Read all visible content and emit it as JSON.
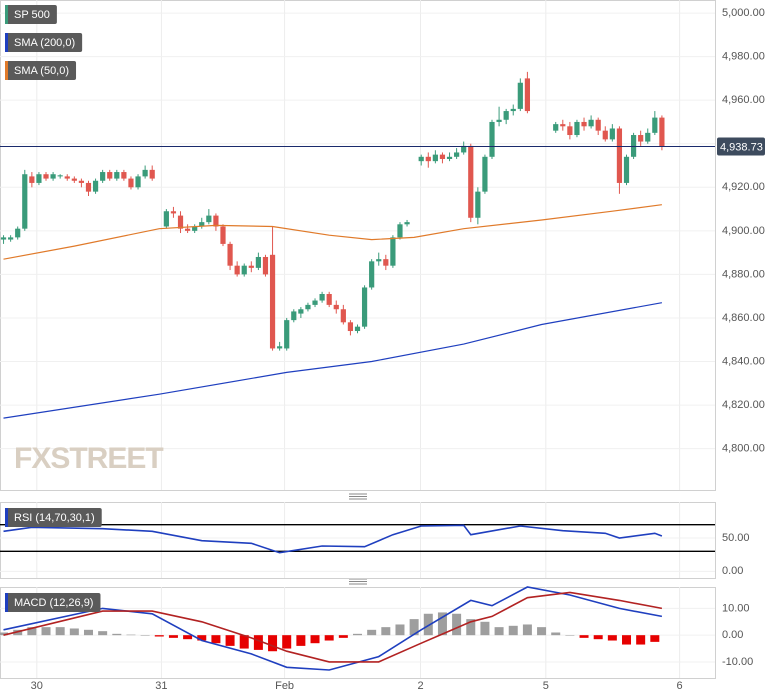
{
  "chart_data": [
    {
      "type": "candlestick",
      "xlim": [
        -0.5,
        100.5
      ],
      "ylim": [
        4781,
        5006
      ],
      "yticks": [
        {
          "value": 5000,
          "label": "5,000.00"
        },
        {
          "value": 4980,
          "label": "4,980.00"
        },
        {
          "value": 4960,
          "label": "4,960.00"
        },
        {
          "value": 4940,
          "label": "4,940.00"
        },
        {
          "value": 4920,
          "label": "4,920.00"
        },
        {
          "value": 4900,
          "label": "4,900.00"
        },
        {
          "value": 4880,
          "label": "4,880.00"
        },
        {
          "value": 4860,
          "label": "4,860.00"
        },
        {
          "value": 4840,
          "label": "4,840.00"
        },
        {
          "value": 4820,
          "label": "4,820.00"
        },
        {
          "value": 4800,
          "label": "4,800.00"
        }
      ],
      "up_color": "#3a9b7a",
      "down_color": "#e0574f",
      "last_price": {
        "value": 4938.73,
        "label": "4,938.73"
      },
      "watermark": "FXSTREET",
      "series": [
        {
          "name": "SP 500",
          "type": "candlestick",
          "color": "#3a9b7a",
          "x": [
            0,
            1,
            2,
            3,
            4,
            5,
            6,
            7,
            8,
            9,
            10,
            11,
            12,
            13,
            14,
            15,
            16,
            17,
            18,
            19,
            20,
            21,
            23,
            24,
            25,
            26,
            27,
            28,
            29,
            30,
            31,
            32,
            33,
            34,
            35,
            36,
            37,
            38,
            39,
            40,
            41,
            42,
            43,
            44,
            45,
            46,
            47,
            48,
            49,
            50,
            51,
            52,
            53,
            54,
            55,
            56,
            57,
            59,
            60,
            61,
            62,
            63,
            64,
            65,
            66,
            67,
            68,
            69,
            70,
            71,
            72,
            73,
            74,
            78,
            79,
            80,
            81,
            82,
            83,
            84,
            85,
            86,
            87,
            88,
            89,
            90,
            91,
            92,
            93
          ],
          "ohlc": [
            [
              4896,
              4898,
              4894,
              4897
            ],
            [
              4896,
              4898,
              4895,
              4897
            ],
            [
              4897,
              4902,
              4896,
              4901
            ],
            [
              4901,
              4928,
              4900,
              4926
            ],
            [
              4925,
              4927,
              4920,
              4922
            ],
            [
              4922,
              4927,
              4921,
              4926
            ],
            [
              4926,
              4927,
              4923,
              4924
            ],
            [
              4924,
              4927,
              4923,
              4926
            ],
            [
              4925,
              4926,
              4924,
              4925.5
            ],
            [
              4925,
              4926,
              4923,
              4924
            ],
            [
              4924,
              4925,
              4922,
              4923
            ],
            [
              4923,
              4924,
              4920,
              4922
            ],
            [
              4922,
              4923,
              4916,
              4918
            ],
            [
              4918,
              4924,
              4917,
              4923
            ],
            [
              4923,
              4928,
              4922,
              4927
            ],
            [
              4927,
              4928,
              4923,
              4924
            ],
            [
              4924,
              4928,
              4923,
              4927
            ],
            [
              4927,
              4928,
              4923,
              4924
            ],
            [
              4924,
              4925,
              4919,
              4920
            ],
            [
              4920,
              4926,
              4919,
              4925
            ],
            [
              4925,
              4930,
              4924,
              4928
            ],
            [
              4928,
              4930,
              4923,
              4924
            ],
            [
              4902,
              4910,
              4901,
              4909
            ],
            [
              4909,
              4911,
              4906,
              4908
            ],
            [
              4907,
              4909,
              4899,
              4901
            ],
            [
              4901,
              4903,
              4899,
              4900
            ],
            [
              4900,
              4903,
              4899,
              4902
            ],
            [
              4902,
              4906,
              4901,
              4904
            ],
            [
              4904,
              4910,
              4903,
              4907
            ],
            [
              4907,
              4908,
              4900,
              4902
            ],
            [
              4902,
              4903,
              4893,
              4894
            ],
            [
              4894,
              4895,
              4882,
              4884
            ],
            [
              4884,
              4886,
              4879,
              4880
            ],
            [
              4880,
              4885,
              4879,
              4884
            ],
            [
              4884,
              4886,
              4881,
              4883
            ],
            [
              4883,
              4890,
              4882,
              4888
            ],
            [
              4888,
              4889,
              4879,
              4880
            ],
            [
              4889,
              4902,
              4845,
              4846
            ],
            [
              4846,
              4849,
              4845,
              4847
            ],
            [
              4846,
              4860,
              4845,
              4859
            ],
            [
              4859,
              4864,
              4858,
              4863
            ],
            [
              4862,
              4865,
              4860,
              4864
            ],
            [
              4864,
              4867,
              4863,
              4866
            ],
            [
              4866,
              4869,
              4865,
              4868
            ],
            [
              4868,
              4872,
              4867,
              4871
            ],
            [
              4871,
              4872,
              4865,
              4866
            ],
            [
              4866,
              4868,
              4862,
              4864
            ],
            [
              4864,
              4866,
              4857,
              4858
            ],
            [
              4858,
              4859,
              4852,
              4854
            ],
            [
              4854,
              4857,
              4853,
              4856
            ],
            [
              4856,
              4875,
              4855,
              4874
            ],
            [
              4874,
              4887,
              4873,
              4886
            ],
            [
              4886,
              4890,
              4884,
              4887
            ],
            [
              4887,
              4889,
              4882,
              4884
            ],
            [
              4884,
              4898,
              4883,
              4897
            ],
            [
              4897,
              4904,
              4896,
              4903
            ],
            [
              4903,
              4905,
              4902,
              4904
            ],
            [
              4932,
              4935,
              4930,
              4934
            ],
            [
              4934,
              4936,
              4929,
              4932
            ],
            [
              4932,
              4937,
              4931,
              4935
            ],
            [
              4935,
              4936,
              4931,
              4933
            ],
            [
              4933,
              4936,
              4932,
              4934
            ],
            [
              4934,
              4938,
              4933,
              4936
            ],
            [
              4936,
              4941,
              4935,
              4939
            ],
            [
              4939,
              4940,
              4904,
              4906
            ],
            [
              4906,
              4920,
              4903,
              4918
            ],
            [
              4918,
              4935,
              4917,
              4934
            ],
            [
              4934,
              4951,
              4933,
              4950
            ],
            [
              4950,
              4957,
              4948,
              4951
            ],
            [
              4951,
              4956,
              4949,
              4955
            ],
            [
              4955,
              4958,
              4953,
              4956
            ],
            [
              4956,
              4970,
              4955,
              4968
            ],
            [
              4970,
              4973,
              4954,
              4955
            ],
            [
              4946,
              4950,
              4945,
              4949
            ],
            [
              4949,
              4951,
              4946,
              4948
            ],
            [
              4948,
              4950,
              4942,
              4944
            ],
            [
              4944,
              4951,
              4943,
              4950
            ],
            [
              4950,
              4952,
              4946,
              4948
            ],
            [
              4948,
              4953,
              4947,
              4951
            ],
            [
              4951,
              4952,
              4944,
              4946
            ],
            [
              4946,
              4948,
              4941,
              4942
            ],
            [
              4942,
              4949,
              4941,
              4947
            ],
            [
              4947,
              4948,
              4917,
              4922
            ],
            [
              4922,
              4935,
              4921,
              4934
            ],
            [
              4934,
              4945,
              4933,
              4944
            ],
            [
              4944,
              4946,
              4939,
              4941
            ],
            [
              4941,
              4947,
              4940,
              4945
            ],
            [
              4945,
              4955,
              4944,
              4952
            ],
            [
              4952,
              4953,
              4937,
              4938.73
            ]
          ]
        },
        {
          "name": "SMA (200,0)",
          "type": "line",
          "color": "#1f3fbf",
          "x": [
            0,
            22,
            40,
            52,
            65,
            76,
            93
          ],
          "values": [
            4814,
            4825,
            4835,
            4840,
            4848,
            4857,
            4867
          ]
        },
        {
          "name": "SMA (50,0)",
          "type": "line",
          "color": "#e07a2a",
          "x": [
            0,
            10,
            22,
            30,
            38,
            46,
            52,
            58,
            65,
            76,
            86,
            93
          ],
          "values": [
            4887,
            4893,
            4901,
            4902.5,
            4902,
            4898,
            4896,
            4897,
            4901,
            4905,
            4909,
            4912
          ]
        }
      ]
    },
    {
      "type": "line",
      "title": "RSI (14,70,30,1)",
      "xlim": [
        -0.5,
        100.5
      ],
      "ylim": [
        -10,
        104
      ],
      "yticks": [
        {
          "value": 50,
          "label": "50.00"
        },
        {
          "value": 0,
          "label": "0.00"
        }
      ],
      "levels": [
        70,
        30
      ],
      "level_color": "#000000",
      "series": [
        {
          "type": "line",
          "color": "#1f3fbf",
          "x": [
            0,
            4,
            14,
            21,
            28,
            35,
            39,
            45,
            51,
            55,
            59,
            65,
            66,
            73,
            79,
            85,
            87,
            92,
            93
          ],
          "values": [
            60,
            66,
            64,
            60,
            46,
            42,
            28,
            38,
            37,
            55,
            68,
            69,
            55,
            68,
            61,
            57,
            50,
            57,
            53
          ]
        }
      ]
    },
    {
      "type": "bar",
      "title": "MACD (12,26,9)",
      "xlim": [
        -0.5,
        100.5
      ],
      "ylim": [
        -16,
        18
      ],
      "yticks": [
        {
          "value": 10,
          "label": "10.00"
        },
        {
          "value": 0,
          "label": "0.00"
        },
        {
          "value": -10,
          "label": "-10.00"
        }
      ],
      "xticks": [
        {
          "value": 4.7,
          "label": "30"
        },
        {
          "value": 22.3,
          "label": "31"
        },
        {
          "value": 39.7,
          "label": "Feb"
        },
        {
          "value": 58.9,
          "label": "2"
        },
        {
          "value": 76.6,
          "label": "5"
        },
        {
          "value": 95.5,
          "label": "6"
        }
      ],
      "series": [
        {
          "type": "bar",
          "positive_color": "#9e9e9e",
          "negative_color": "#e60000",
          "x": [
            0,
            2,
            4,
            6,
            8,
            10,
            12,
            14,
            16,
            18,
            20,
            22,
            24,
            26,
            28,
            30,
            32,
            34,
            36,
            38,
            40,
            42,
            44,
            46,
            48,
            50,
            52,
            54,
            56,
            58,
            60,
            62,
            64,
            66,
            68,
            70,
            72,
            74,
            76,
            78,
            80,
            82,
            84,
            86,
            88,
            90,
            92
          ],
          "values": [
            1,
            2,
            3,
            3,
            3,
            2.5,
            2,
            1.5,
            0.5,
            0.2,
            0,
            -0.5,
            -1,
            -1.5,
            -2,
            -3,
            -4,
            -5,
            -5.5,
            -6,
            -5,
            -4,
            -3,
            -2,
            -1,
            0.5,
            2,
            3,
            4,
            6,
            8,
            8.5,
            8,
            6,
            5,
            3,
            3.5,
            4,
            3,
            1,
            0,
            -1,
            -1.5,
            -2,
            -3.5,
            -3.5,
            -2.5
          ]
        },
        {
          "type": "line",
          "color": "#1f3fbf",
          "x": [
            0,
            14,
            21,
            28,
            35,
            40,
            46,
            53,
            59,
            66,
            69,
            74,
            80,
            87,
            93
          ],
          "values": [
            2,
            10,
            8,
            -2,
            -7,
            -12,
            -13,
            -8,
            2,
            13,
            11,
            18,
            15,
            10,
            7
          ]
        },
        {
          "type": "line",
          "color": "#b22222",
          "x": [
            0,
            14,
            21,
            28,
            35,
            40,
            46,
            53,
            59,
            66,
            69,
            74,
            80,
            87,
            93
          ],
          "values": [
            0,
            9,
            9,
            5,
            -1,
            -6,
            -10,
            -10,
            -3,
            5,
            7,
            14,
            16,
            13,
            10
          ]
        }
      ]
    }
  ]
}
